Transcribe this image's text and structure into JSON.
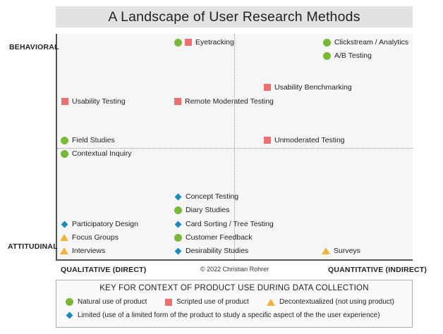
{
  "title": "A Landscape of User Research Methods",
  "axes": {
    "top_left": "BEHAVIORAL",
    "bottom_left": "ATTITUDINAL",
    "bottom_left_x": "QUALITATIVE (DIRECT)",
    "bottom_right_x": "QUANTITATIVE (INDIRECT)"
  },
  "credit": "© 2022 Christian Rohrer",
  "methods": [
    {
      "label": "Eyetracking",
      "markers": [
        "circle",
        "square"
      ]
    },
    {
      "label": "Clickstream / Analytics",
      "markers": [
        "circle"
      ]
    },
    {
      "label": "A/B Testing",
      "markers": [
        "circle"
      ]
    },
    {
      "label": "Usability Benchmarking",
      "markers": [
        "square"
      ]
    },
    {
      "label": "Usability Testing",
      "markers": [
        "square"
      ]
    },
    {
      "label": "Remote Moderated Testing",
      "markers": [
        "square"
      ]
    },
    {
      "label": "Field Studies",
      "markers": [
        "circle"
      ]
    },
    {
      "label": "Unmoderated Testing",
      "markers": [
        "square"
      ]
    },
    {
      "label": "Contextual Inquiry",
      "markers": [
        "circle"
      ]
    },
    {
      "label": "Concept Testing",
      "markers": [
        "diamond"
      ]
    },
    {
      "label": "Diary Studies",
      "markers": [
        "circle"
      ]
    },
    {
      "label": "Participatory Design",
      "markers": [
        "diamond"
      ]
    },
    {
      "label": "Card Sorting / Tree Testing",
      "markers": [
        "diamond"
      ]
    },
    {
      "label": "Focus Groups",
      "markers": [
        "triangle"
      ]
    },
    {
      "label": "Customer Feedback",
      "markers": [
        "circle"
      ]
    },
    {
      "label": "Interviews",
      "markers": [
        "triangle"
      ]
    },
    {
      "label": "Desirability Studies",
      "markers": [
        "diamond"
      ]
    },
    {
      "label": "Surveys",
      "markers": [
        "triangle"
      ]
    }
  ],
  "key": {
    "title": "KEY FOR CONTEXT OF PRODUCT USE DURING DATA COLLECTION",
    "natural": "Natural use of product",
    "scripted": "Scripted use of product",
    "decontextualized": "Decontextualized (not using product)",
    "limited": "Limited (use of a limited form of the product to study a specific aspect of the the user experience)"
  },
  "colors": {
    "natural": "#7ab837",
    "scripted": "#ee6f6f",
    "decontextualized": "#f0b23f",
    "limited": "#1b8bbf"
  }
}
